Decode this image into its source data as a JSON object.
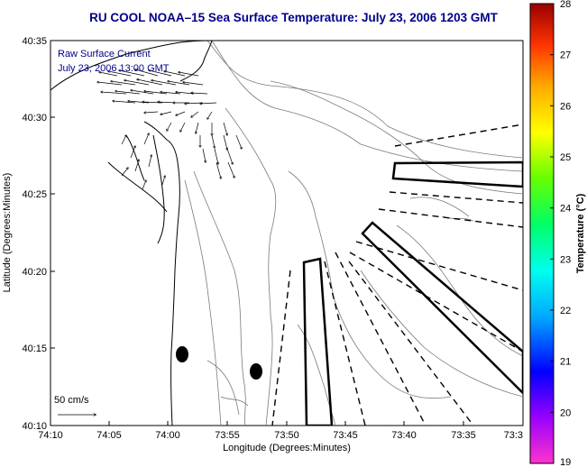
{
  "title": "RU COOL  NOAA–15  Sea Surface Temperature:  July 23, 2006 1203 GMT",
  "axes": {
    "xlabel": "Longitude (Degrees:Minutes)",
    "ylabel": "Latitude (Degrees:Minutes)",
    "xticks": [
      "74:10",
      "74:05",
      "74:00",
      "73:55",
      "73:50",
      "73:45",
      "73:40",
      "73:35",
      "73:3"
    ],
    "yticks": [
      "40:35",
      "40:30",
      "40:25",
      "40:20",
      "40:15",
      "40:10"
    ]
  },
  "current_legend": {
    "line1": "Raw Surface Current",
    "line2": "July 23, 2006 13:00 GMT",
    "scale_label": "50 cm/s"
  },
  "colorbar": {
    "label": "Temperature (°C)",
    "ticks": [
      "28",
      "27",
      "26",
      "25",
      "24",
      "23",
      "22",
      "21",
      "20",
      "19"
    ],
    "min": 19,
    "max": 28,
    "colors": [
      "#ff33cc",
      "#9900ff",
      "#0000ff",
      "#00aaff",
      "#00ffee",
      "#00ff66",
      "#66ff00",
      "#ffff00",
      "#ffaa00",
      "#ff3300",
      "#990000"
    ]
  },
  "colors": {
    "title": "#00008b",
    "contour": "#7a7a7a",
    "coast": "#000000"
  }
}
